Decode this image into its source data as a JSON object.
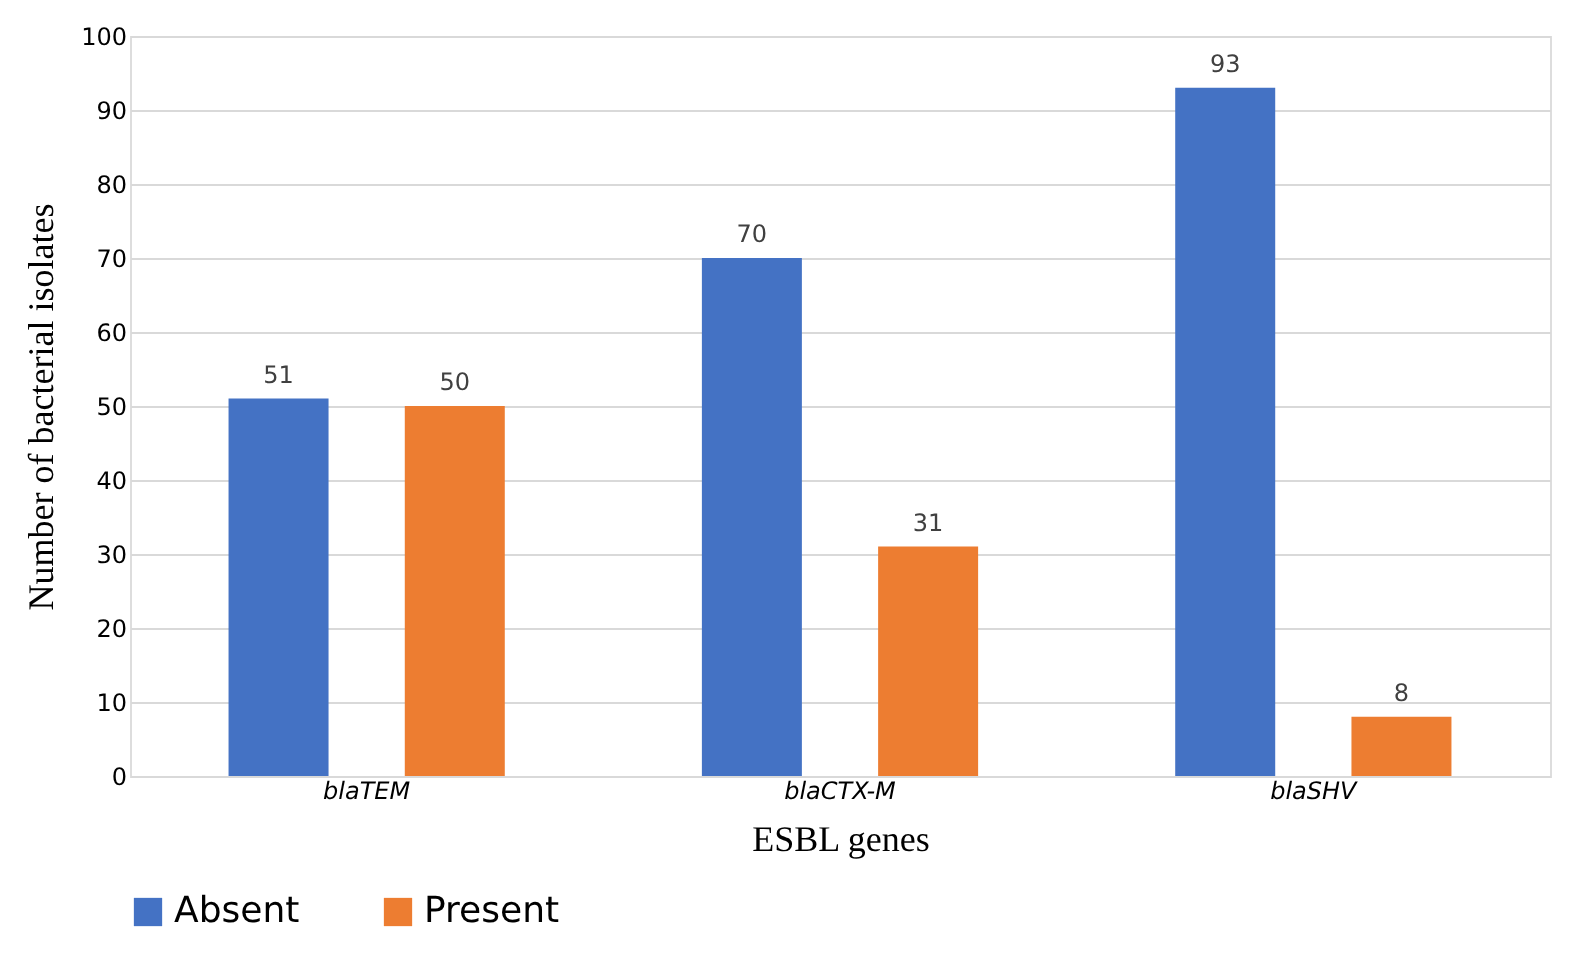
{
  "chart_data": {
    "type": "bar",
    "xlabel": "ESBL genes",
    "ylabel": "Number of bacterial isolates",
    "categories": [
      "blaTEM",
      "blaCTX-M",
      "blaSHV"
    ],
    "series": [
      {
        "name": "Absent",
        "color": "#4472c4",
        "values": [
          51,
          70,
          93
        ]
      },
      {
        "name": "Present",
        "color": "#ed7d31",
        "values": [
          50,
          31,
          8
        ]
      }
    ],
    "ylim": [
      0,
      100
    ],
    "yticks": [
      0,
      10,
      20,
      30,
      40,
      50,
      60,
      70,
      80,
      90,
      100
    ],
    "grid": "y",
    "legend": "bottom",
    "data_labels": true
  }
}
